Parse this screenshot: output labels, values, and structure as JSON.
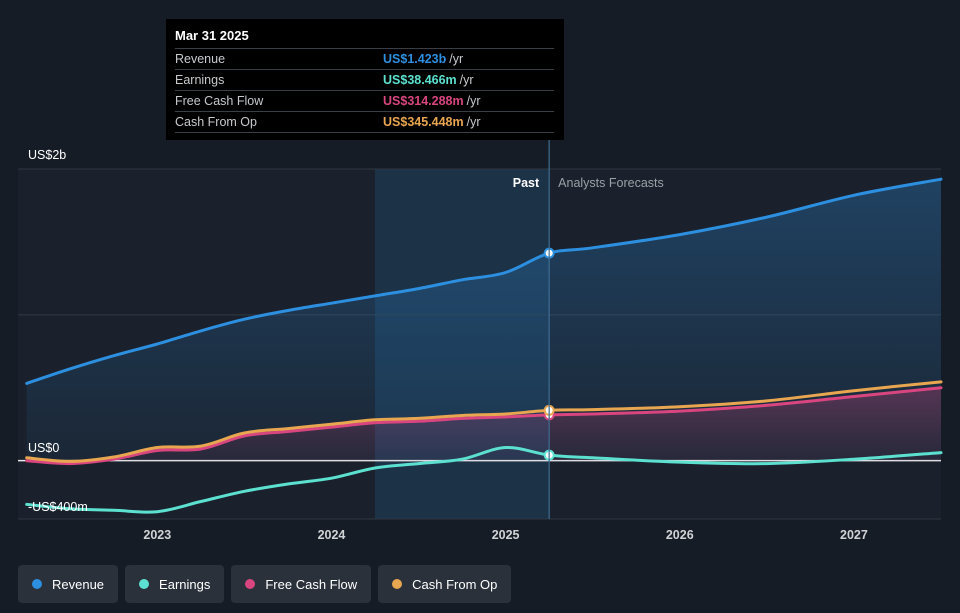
{
  "tooltip": {
    "date": "Mar 31 2025",
    "rows": [
      {
        "label": "Revenue",
        "value": "US$1.423b",
        "unit": "/yr",
        "color": "#2d8fe0"
      },
      {
        "label": "Earnings",
        "value": "US$38.466m",
        "unit": "/yr",
        "color": "#5ce0d0"
      },
      {
        "label": "Free Cash Flow",
        "value": "US$314.288m",
        "unit": "/yr",
        "color": "#d9467f"
      },
      {
        "label": "Cash From Op",
        "value": "US$345.448m",
        "unit": "/yr",
        "color": "#e8a650"
      }
    ]
  },
  "chart_data": {
    "type": "area",
    "title": "",
    "xlabel": "",
    "ylabel": "",
    "x_ticks": [
      "2023",
      "2024",
      "2025",
      "2026",
      "2027"
    ],
    "y_ticks": [
      {
        "label": "US$2b",
        "value": 2000
      },
      {
        "label": "US$0",
        "value": 0
      },
      {
        "label": "-US$400m",
        "value": -400
      }
    ],
    "xlim": [
      2022.2,
      2027.5
    ],
    "ylim": [
      -400,
      2000
    ],
    "grid": true,
    "section_labels": {
      "past": "Past",
      "forecast": "Analysts Forecasts"
    },
    "highlight_range": [
      2024.25,
      2025.25
    ],
    "divider_x": 2025.25,
    "series": [
      {
        "name": "Revenue",
        "color": "#2d8fe0",
        "fill": true,
        "points": [
          [
            2022.25,
            530
          ],
          [
            2022.5,
            630
          ],
          [
            2022.75,
            720
          ],
          [
            2023.0,
            800
          ],
          [
            2023.25,
            890
          ],
          [
            2023.5,
            970
          ],
          [
            2023.75,
            1030
          ],
          [
            2024.0,
            1080
          ],
          [
            2024.25,
            1130
          ],
          [
            2024.5,
            1180
          ],
          [
            2024.75,
            1240
          ],
          [
            2025.0,
            1290
          ],
          [
            2025.25,
            1423
          ],
          [
            2025.5,
            1460
          ],
          [
            2026.0,
            1550
          ],
          [
            2026.5,
            1670
          ],
          [
            2027.0,
            1820
          ],
          [
            2027.5,
            1930
          ]
        ]
      },
      {
        "name": "Earnings",
        "color": "#5ce0d0",
        "fill": false,
        "points": [
          [
            2022.25,
            -300
          ],
          [
            2022.5,
            -330
          ],
          [
            2022.75,
            -340
          ],
          [
            2023.0,
            -350
          ],
          [
            2023.25,
            -280
          ],
          [
            2023.5,
            -210
          ],
          [
            2023.75,
            -160
          ],
          [
            2024.0,
            -120
          ],
          [
            2024.25,
            -50
          ],
          [
            2024.5,
            -20
          ],
          [
            2024.75,
            10
          ],
          [
            2025.0,
            90
          ],
          [
            2025.25,
            38
          ],
          [
            2025.5,
            20
          ],
          [
            2026.0,
            -10
          ],
          [
            2026.5,
            -20
          ],
          [
            2027.0,
            10
          ],
          [
            2027.5,
            55
          ]
        ]
      },
      {
        "name": "Free Cash Flow",
        "color": "#d9467f",
        "fill": true,
        "points": [
          [
            2022.25,
            0
          ],
          [
            2022.5,
            -20
          ],
          [
            2022.75,
            10
          ],
          [
            2023.0,
            70
          ],
          [
            2023.25,
            80
          ],
          [
            2023.5,
            170
          ],
          [
            2023.75,
            200
          ],
          [
            2024.0,
            230
          ],
          [
            2024.25,
            260
          ],
          [
            2024.5,
            270
          ],
          [
            2024.75,
            290
          ],
          [
            2025.0,
            300
          ],
          [
            2025.25,
            314
          ],
          [
            2025.5,
            320
          ],
          [
            2026.0,
            340
          ],
          [
            2026.5,
            380
          ],
          [
            2027.0,
            440
          ],
          [
            2027.5,
            500
          ]
        ]
      },
      {
        "name": "Cash From Op",
        "color": "#e8a650",
        "fill": false,
        "points": [
          [
            2022.25,
            20
          ],
          [
            2022.5,
            -5
          ],
          [
            2022.75,
            25
          ],
          [
            2023.0,
            90
          ],
          [
            2023.25,
            100
          ],
          [
            2023.5,
            190
          ],
          [
            2023.75,
            220
          ],
          [
            2024.0,
            250
          ],
          [
            2024.25,
            280
          ],
          [
            2024.5,
            290
          ],
          [
            2024.75,
            310
          ],
          [
            2025.0,
            320
          ],
          [
            2025.25,
            345
          ],
          [
            2025.5,
            350
          ],
          [
            2026.0,
            370
          ],
          [
            2026.5,
            410
          ],
          [
            2027.0,
            480
          ],
          [
            2027.5,
            540
          ]
        ]
      }
    ]
  },
  "legend": [
    {
      "label": "Revenue",
      "color": "#2d8fe0"
    },
    {
      "label": "Earnings",
      "color": "#5ce0d0"
    },
    {
      "label": "Free Cash Flow",
      "color": "#d9467f"
    },
    {
      "label": "Cash From Op",
      "color": "#e8a650"
    }
  ]
}
